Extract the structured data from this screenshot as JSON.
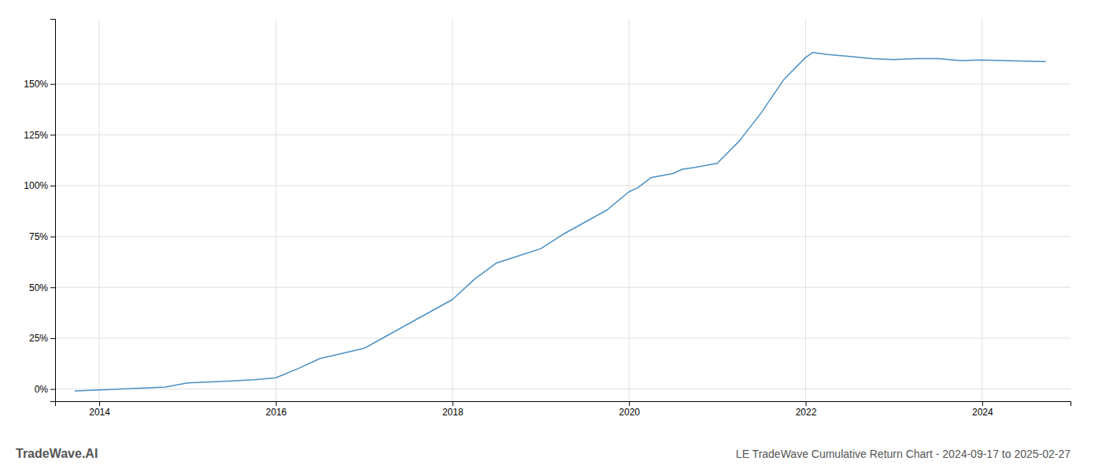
{
  "chart_data": {
    "type": "line",
    "title": "LE TradeWave Cumulative Return Chart - 2024-09-17 to 2025-02-27",
    "annotations": [
      "TradeWave.AI"
    ],
    "color": "#4a90c4",
    "x": [
      2013.72,
      2014.0,
      2014.25,
      2014.5,
      2014.75,
      2015.0,
      2015.25,
      2015.5,
      2015.75,
      2016.0,
      2016.25,
      2016.5,
      2016.75,
      2017.0,
      2017.25,
      2017.5,
      2017.75,
      2018.0,
      2018.25,
      2018.5,
      2018.75,
      2019.0,
      2019.25,
      2019.5,
      2019.75,
      2020.0,
      2020.1,
      2020.25,
      2020.5,
      2020.6,
      2020.75,
      2021.0,
      2021.25,
      2021.5,
      2021.75,
      2022.0,
      2022.08,
      2022.25,
      2022.5,
      2022.75,
      2023.0,
      2023.25,
      2023.5,
      2023.75,
      2024.0,
      2024.25,
      2024.5,
      2024.72
    ],
    "values": [
      -0.01,
      -0.005,
      0.0,
      0.005,
      0.01,
      0.03,
      0.035,
      0.04,
      0.045,
      0.055,
      0.1,
      0.15,
      0.175,
      0.2,
      0.26,
      0.32,
      0.38,
      0.44,
      0.54,
      0.62,
      0.655,
      0.69,
      0.76,
      0.82,
      0.88,
      0.97,
      0.99,
      1.04,
      1.06,
      1.08,
      1.09,
      1.11,
      1.22,
      1.36,
      1.52,
      1.63,
      1.655,
      1.645,
      1.635,
      1.625,
      1.62,
      1.625,
      1.625,
      1.615,
      1.618,
      1.615,
      1.612,
      1.61
    ],
    "xlim": [
      2013.5,
      2025.0
    ],
    "xticks": [
      2014,
      2016,
      2018,
      2020,
      2022,
      2024
    ],
    "ylim": [
      -0.06,
      1.82
    ],
    "yticks": [
      {
        "value": 0.0,
        "label": "0%"
      },
      {
        "value": 0.25,
        "label": "25%"
      },
      {
        "value": 0.5,
        "label": "50%"
      },
      {
        "value": 0.75,
        "label": "75%"
      },
      {
        "value": 1.0,
        "label": "100%"
      },
      {
        "value": 1.25,
        "label": "125%"
      },
      {
        "value": 1.5,
        "label": "150%"
      }
    ],
    "grid": true
  }
}
